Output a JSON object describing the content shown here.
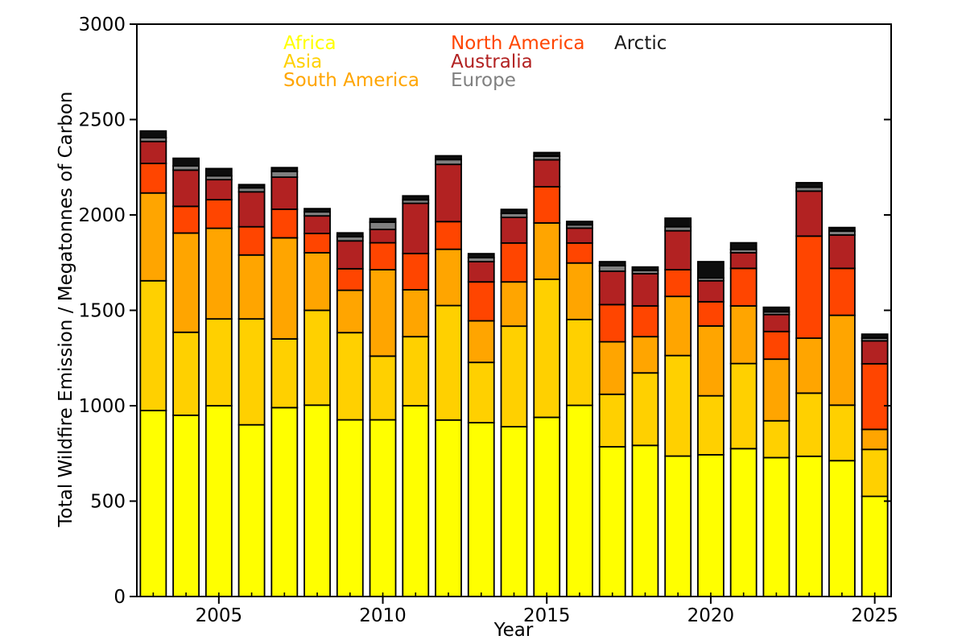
{
  "chart_data": {
    "type": "bar",
    "stacked": true,
    "title": "",
    "xlabel": "Year",
    "ylabel": "Total Wildfire Emission / Megatonnes of Carbon",
    "ylim": [
      0,
      3000
    ],
    "grid": false,
    "legend_position": "top-inside",
    "yticks": [
      0,
      500,
      1000,
      1500,
      2000,
      2500,
      3000
    ],
    "ytick_labels": [
      "0",
      "500",
      "1000",
      "1500",
      "2000",
      "2500",
      "3000"
    ],
    "xtick_years": [
      2005,
      2010,
      2015,
      2020,
      2025
    ],
    "xtick_labels": [
      "2005",
      "2010",
      "2015",
      "2020",
      "2025"
    ],
    "years": [
      2003,
      2004,
      2005,
      2006,
      2007,
      2008,
      2009,
      2010,
      2011,
      2012,
      2013,
      2014,
      2015,
      2016,
      2017,
      2018,
      2019,
      2020,
      2021,
      2022,
      2023,
      2024,
      2025
    ],
    "units": "Megatonnes of Carbon",
    "series": [
      {
        "name": "Africa",
        "color": "#FFFF00",
        "values": [
          975,
          950,
          1000,
          900,
          990,
          1003,
          926,
          926,
          1000,
          925,
          911,
          890,
          939,
          1002,
          785,
          792,
          736,
          743,
          775,
          728,
          735,
          712,
          525
        ]
      },
      {
        "name": "Asia",
        "color": "#FFD000",
        "values": [
          680,
          435,
          455,
          555,
          360,
          497,
          457,
          334,
          362,
          600,
          316,
          527,
          724,
          450,
          275,
          380,
          527,
          309,
          446,
          193,
          331,
          291,
          246
        ]
      },
      {
        "name": "South America",
        "color": "#FFA500",
        "values": [
          460,
          520,
          475,
          335,
          530,
          302,
          222,
          453,
          246,
          295,
          218,
          232,
          295,
          296,
          275,
          190,
          310,
          366,
          302,
          323,
          288,
          471,
          105
        ]
      },
      {
        "name": "North America",
        "color": "#FF4500",
        "values": [
          155,
          140,
          150,
          148,
          150,
          101,
          113,
          141,
          190,
          145,
          204,
          204,
          190,
          105,
          195,
          161,
          140,
          127,
          197,
          145,
          535,
          246,
          344
        ]
      },
      {
        "name": "Australia",
        "color": "#B22222",
        "values": [
          115,
          190,
          105,
          183,
          168,
          92,
          146,
          70,
          263,
          300,
          106,
          134,
          141,
          78,
          175,
          169,
          204,
          110,
          82,
          89,
          236,
          175,
          120
        ]
      },
      {
        "name": "Europe",
        "color": "#808080",
        "values": [
          20,
          22,
          20,
          21,
          30,
          21,
          22,
          38,
          18,
          25,
          21,
          21,
          19,
          17,
          29,
          17,
          21,
          15,
          17,
          14,
          20,
          20,
          14
        ]
      },
      {
        "name": "Arctic",
        "color": "#0d0d0d",
        "values": [
          35,
          40,
          38,
          17,
          20,
          17,
          20,
          19,
          21,
          20,
          21,
          21,
          19,
          18,
          21,
          18,
          45,
          85,
          35,
          24,
          24,
          19,
          21
        ]
      }
    ],
    "totals": [
      2440,
      2297,
      2243,
      2159,
      2248,
      2033,
      1906,
      1981,
      2100,
      2310,
      1797,
      2029,
      2327,
      1966,
      1755,
      1727,
      1983,
      1755,
      1854,
      1516,
      2169,
      1934,
      1375
    ]
  }
}
